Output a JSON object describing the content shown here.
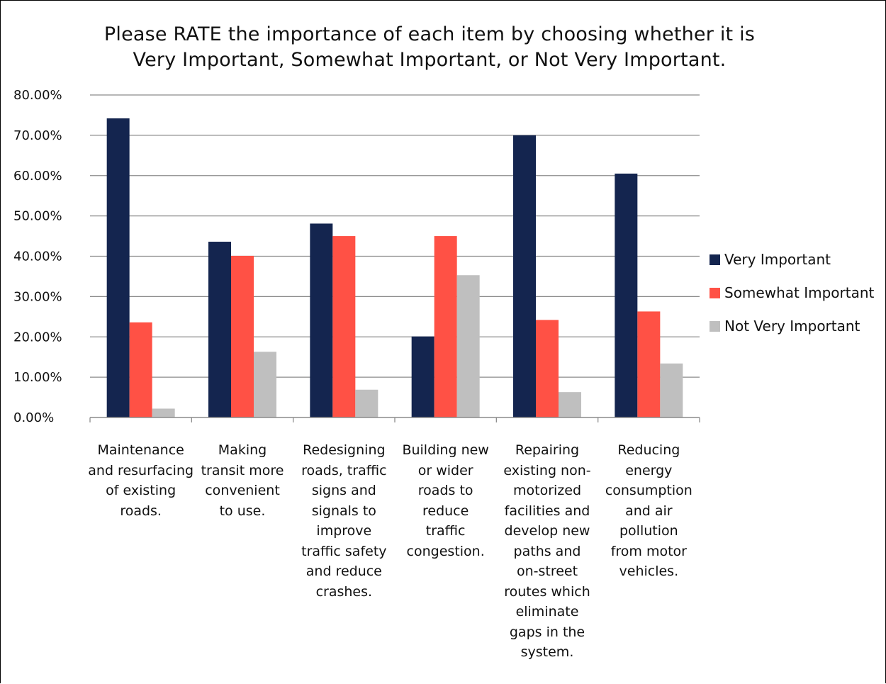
{
  "chart_data": {
    "type": "bar",
    "title_lines": [
      "Please RATE the importance of each item by choosing whether it is",
      "Very Important, Somewhat Important, or Not Very Important."
    ],
    "categories": [
      "Maintenance\nand resurfacing\nof existing\nroads.",
      "Making\ntransit more\nconvenient\nto use.",
      "Redesigning\nroads, traffic\nsigns and\nsignals to\nimprove\ntraffic safety\nand reduce\ncrashes.",
      "Building new\nor wider\nroads to\nreduce\ntraffic\ncongestion.",
      "Repairing\nexisting non-\nmotorized\nfacilities and\ndevelop new\npaths and\non-street\nroutes which\neliminate\ngaps in the\nsystem.",
      "Reducing\nenergy\nconsumption\nand air\npollution\nfrom motor\nvehicles."
    ],
    "series": [
      {
        "name": "Very Important",
        "color": "#14254f",
        "values": [
          74.2,
          43.6,
          48.1,
          20.1,
          70.0,
          60.5
        ]
      },
      {
        "name": "Somewhat Important",
        "color": "#ff5145",
        "values": [
          23.6,
          40.1,
          45.0,
          45.0,
          24.2,
          26.3
        ]
      },
      {
        "name": "Not Very Important",
        "color": "#bfbfbf",
        "values": [
          2.2,
          16.3,
          6.9,
          35.3,
          6.3,
          13.4
        ]
      }
    ],
    "yticks": [
      "0.00%",
      "10.00%",
      "20.00%",
      "30.00%",
      "40.00%",
      "50.00%",
      "60.00%",
      "70.00%",
      "80.00%"
    ],
    "ylim": [
      0,
      80
    ],
    "grid": true,
    "legend_position": "right"
  }
}
